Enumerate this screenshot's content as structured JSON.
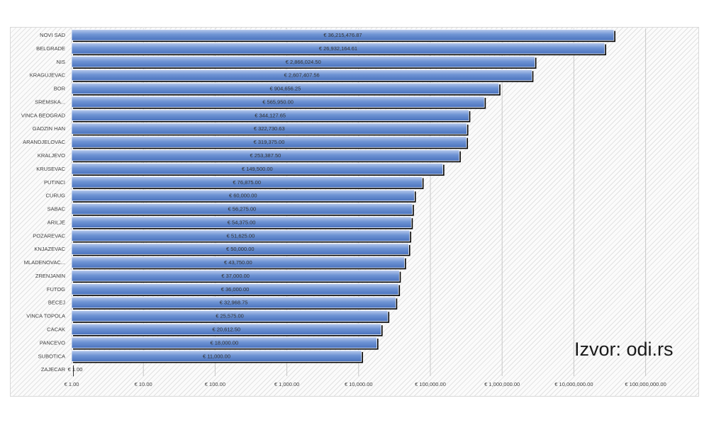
{
  "source_note": "Izvor: odi.rs",
  "colors": {
    "bar_fill_top": "#b7c9ec",
    "bar_fill_mid": "#6f94d4",
    "bar_fill_bottom": "#4a72bd",
    "bar_shadow": "#000000",
    "grid": "#c8c8c8"
  },
  "chart_data": {
    "type": "bar",
    "orientation": "horizontal",
    "x_scale": "log",
    "xlim": [
      1,
      1000000000
    ],
    "grid": true,
    "legend": "none",
    "title": "",
    "xlabel": "",
    "ylabel": "",
    "x_ticks": [
      "€ 1.00",
      "€ 10.00",
      "€ 100.00",
      "€ 1,000.00",
      "€ 10,000.00",
      "€ 100,000.00",
      "€ 1,000,000.00",
      "€ 10,000,000.00",
      "€ 100,000,000.00"
    ],
    "categories": [
      "NOVI SAD",
      "BELGRADE",
      "NIS",
      "KRAGUJEVAC",
      "BOR",
      "SREMSKA...",
      "VINCA BEOGRAD",
      "GADZIN HAN",
      "ARANDJELOVAC",
      "KRALJEVO",
      "KRUSEVAC",
      "PUTINCI",
      "CURUG",
      "SABAC",
      "ARILJE",
      "POZAREVAC",
      "KNJAZEVAC",
      "MLADENOVAC...",
      "ZRENJANIN",
      "FUTOG",
      "BECEJ",
      "VINCA TOPOLA",
      "CACAK",
      "PANCEVO",
      "SUBOTICA",
      "ZAJECAR"
    ],
    "values": [
      36215476.87,
      26932164.61,
      2866024.5,
      2607407.56,
      904656.25,
      565950.0,
      344127.65,
      322730.63,
      319375.0,
      253387.5,
      149500.0,
      76875.0,
      60000.0,
      56275.0,
      54375.0,
      51625.0,
      50000.0,
      43750.0,
      37000.0,
      36000.0,
      32968.75,
      25575.0,
      20612.5,
      18000.0,
      11000.0,
      1.0
    ],
    "value_labels": [
      "€ 36,215,476.87",
      "€ 26,932,164.61",
      "€ 2,866,024.50",
      "€ 2,607,407.56",
      "€ 904,656.25",
      "€ 565,950.00",
      "€ 344,127.65",
      "€ 322,730.63",
      "€ 319,375.00",
      "€ 253,387.50",
      "€ 149,500.00",
      "€ 76,875.00",
      "€ 60,000.00",
      "€ 56,275.00",
      "€ 54,375.00",
      "€ 51,625.00",
      "€ 50,000.00",
      "€ 43,750.00",
      "€ 37,000.00",
      "€ 36,000.00",
      "€ 32,968.75",
      "€ 25,575.00",
      "€ 20,612.50",
      "€ 18,000.00",
      "€ 11,000.00",
      "€ 1.00"
    ]
  }
}
